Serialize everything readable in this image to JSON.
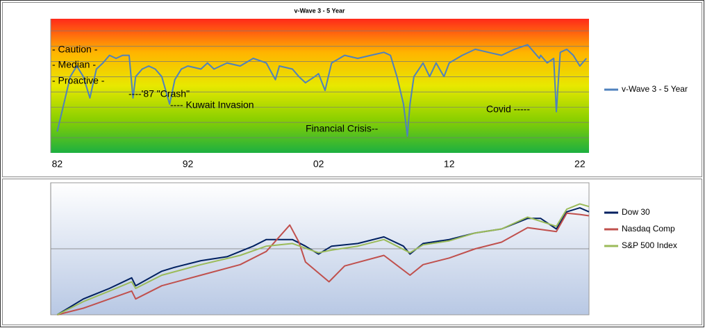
{
  "chart_data": [
    {
      "type": "line",
      "title": "v-Wave 3 - 5 Year",
      "xlim": [
        1981.5,
        2022.7
      ],
      "ylim": [
        0,
        88
      ],
      "xticks": [
        {
          "value": 1982,
          "label": "82"
        },
        {
          "value": 1992,
          "label": "92"
        },
        {
          "value": 2002,
          "label": "02"
        },
        {
          "value": 2012,
          "label": "12"
        },
        {
          "value": 2022,
          "label": "22"
        }
      ],
      "ygrid": [
        10,
        20,
        30,
        40,
        50,
        60,
        70,
        80
      ],
      "annotations": [
        "- Caution -",
        "- Median -",
        "- Proactive -",
        "----'87 \"Crash\"",
        "---- Kuwait Invasion",
        "Financial Crisis--",
        "Covid -----"
      ],
      "series": [
        {
          "name": "v-Wave 3 - 5 Year",
          "color": "#4f81bd",
          "x": [
            1982,
            1982.5,
            1983,
            1983.5,
            1984,
            1984.5,
            1985,
            1985.5,
            1986,
            1986.5,
            1987,
            1987.5,
            1987.8,
            1988,
            1988.5,
            1989,
            1989.5,
            1990,
            1990.6,
            1991,
            1991.5,
            1992,
            1993,
            1993.5,
            1994,
            1995,
            1996,
            1997,
            1998,
            1998.7,
            1999,
            2000,
            2000.5,
            2001,
            2001.7,
            2002,
            2002.5,
            2003,
            2004,
            2005,
            2006,
            2007,
            2007.5,
            2008,
            2008.5,
            2008.8,
            2009,
            2009.3,
            2010,
            2010.5,
            2011,
            2011.6,
            2012,
            2013,
            2014,
            2015,
            2016,
            2017,
            2018,
            2018.9,
            2019,
            2019.5,
            2020,
            2020.2,
            2020.5,
            2021,
            2021.5,
            2022,
            2022.5
          ],
          "values": [
            14,
            32,
            50,
            57,
            50,
            36,
            55,
            59,
            64,
            62,
            64,
            64,
            36,
            50,
            55,
            57,
            55,
            50,
            32,
            48,
            55,
            57,
            55,
            59,
            55,
            59,
            57,
            62,
            59,
            48,
            57,
            55,
            50,
            46,
            50,
            52,
            41,
            59,
            64,
            62,
            64,
            66,
            64,
            50,
            32,
            11,
            32,
            50,
            59,
            50,
            59,
            50,
            59,
            64,
            68,
            66,
            64,
            68,
            71,
            62,
            64,
            59,
            62,
            27,
            66,
            68,
            64,
            57,
            62
          ]
        }
      ]
    },
    {
      "type": "line",
      "xlim": [
        1981.5,
        2022.7
      ],
      "ylim": [
        0,
        100
      ],
      "ygrid": [
        50
      ],
      "series": [
        {
          "name": "Dow 30",
          "color": "#002060",
          "x": [
            1982,
            1984,
            1986,
            1987.7,
            1988,
            1990,
            1991,
            1993,
            1995,
            1997,
            1998,
            2000,
            2001,
            2002,
            2003,
            2005,
            2007,
            2008.5,
            2009,
            2010,
            2012,
            2014,
            2016,
            2018,
            2019,
            2020.2,
            2021,
            2022,
            2022.7
          ],
          "values": [
            0,
            12,
            20,
            28,
            22,
            33,
            36,
            41,
            44,
            52,
            57,
            57,
            52,
            46,
            52,
            54,
            59,
            52,
            46,
            54,
            57,
            62,
            65,
            73,
            73,
            65,
            78,
            81,
            78
          ]
        },
        {
          "name": "Nasdaq Comp",
          "color": "#c0504d",
          "x": [
            1982,
            1984,
            1986,
            1987.7,
            1988,
            1990,
            1993,
            1996,
            1998,
            1999.8,
            2000.5,
            2001,
            2002.8,
            2004,
            2007,
            2009,
            2010,
            2012,
            2014,
            2016,
            2018,
            2020.2,
            2021,
            2022,
            2022.7
          ],
          "values": [
            0,
            5,
            12,
            18,
            12,
            22,
            30,
            38,
            48,
            68,
            55,
            40,
            25,
            37,
            45,
            30,
            38,
            43,
            50,
            55,
            66,
            63,
            77,
            76,
            75
          ]
        },
        {
          "name": "S&P 500 Index",
          "color": "#9bbb59",
          "x": [
            1982,
            1984,
            1986,
            1987.7,
            1988,
            1990,
            1993,
            1996,
            1998,
            2000,
            2002,
            2003,
            2005,
            2007,
            2009,
            2010,
            2012,
            2014,
            2016,
            2018,
            2020.2,
            2021,
            2022,
            2022.7
          ],
          "values": [
            0,
            10,
            18,
            25,
            20,
            30,
            38,
            45,
            52,
            54,
            47,
            49,
            52,
            57,
            47,
            53,
            56,
            62,
            65,
            74,
            67,
            80,
            84,
            82
          ]
        }
      ]
    }
  ]
}
